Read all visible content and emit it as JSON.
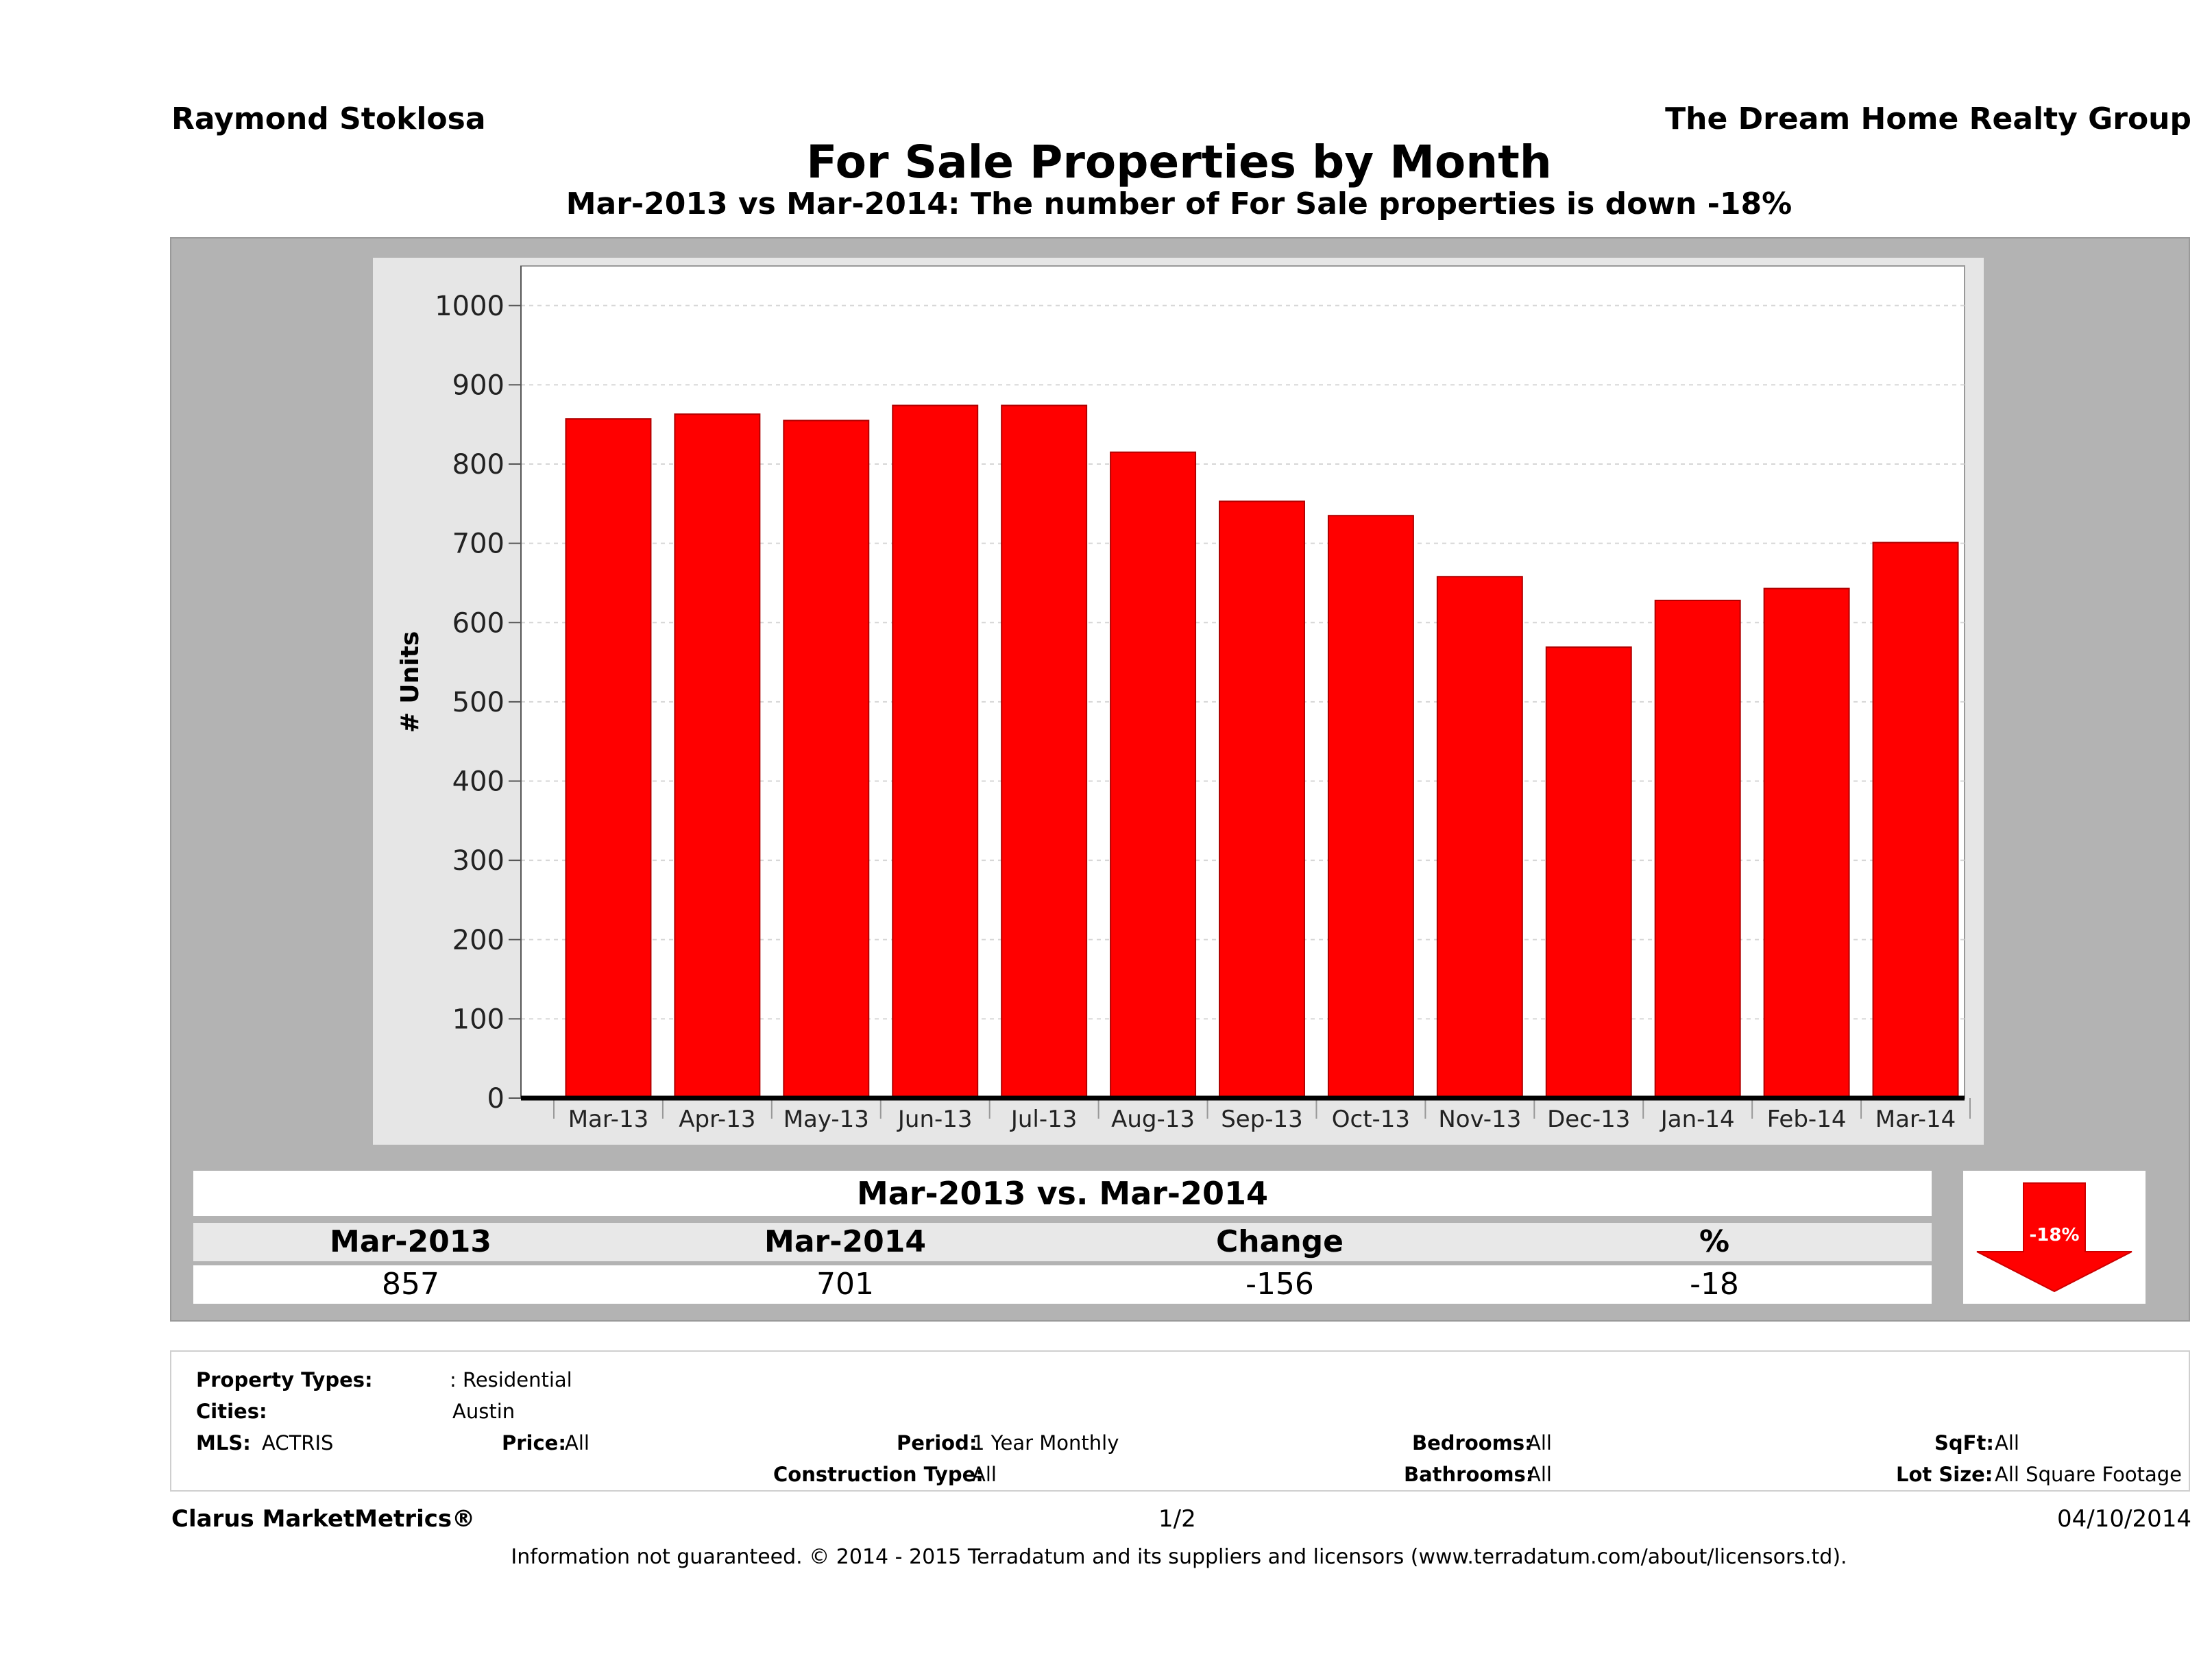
{
  "header": {
    "agent_name": "Raymond Stoklosa",
    "company_name": "The Dream Home Realty Group"
  },
  "colors": {
    "bar": "#ff0000",
    "panel": "#b3b3b3",
    "arrow": "#ff0000"
  },
  "chart_data": {
    "type": "bar",
    "title": "For Sale Properties by Month",
    "subtitle": "Mar-2013 vs Mar-2014: The number of For Sale  properties is down -18%",
    "ylabel": "# Units",
    "xlabel": "",
    "ylim": [
      0,
      1050
    ],
    "yticks": [
      "0",
      "100",
      "200",
      "300",
      "400",
      "500",
      "600",
      "700",
      "800",
      "900",
      "1000"
    ],
    "grid": true,
    "categories": [
      "Mar-13",
      "Apr-13",
      "May-13",
      "Jun-13",
      "Jul-13",
      "Aug-13",
      "Sep-13",
      "Oct-13",
      "Nov-13",
      "Dec-13",
      "Jan-14",
      "Feb-14",
      "Mar-14"
    ],
    "values": [
      857,
      863,
      855,
      874,
      874,
      815,
      753,
      735,
      658,
      569,
      628,
      643,
      701
    ]
  },
  "summary": {
    "title": "Mar-2013 vs. Mar-2014",
    "headers": [
      "Mar-2013",
      "Mar-2014",
      "Change",
      "%"
    ],
    "values": [
      "857",
      "701",
      "-156",
      "-18"
    ],
    "badge": "-18%",
    "arrow_icon": "down-arrow-icon"
  },
  "filters": {
    "property_types_label": "Property Types:",
    "property_types_value": ": Residential",
    "cities_label": "Cities:",
    "cities_value": "Austin",
    "mls_label": "MLS:",
    "mls_value": "ACTRIS",
    "price_label": "Price:",
    "price_value": "All",
    "period_label": "Period:",
    "period_value": "1 Year Monthly",
    "construction_label": "Construction Type:",
    "construction_value": "All",
    "bedrooms_label": "Bedrooms:",
    "bedrooms_value": "All",
    "bathrooms_label": "Bathrooms:",
    "bathrooms_value": "All",
    "sqft_label": "SqFt:",
    "sqft_value": "All",
    "lotsize_label": "Lot Size:",
    "lotsize_value": "All Square Footage"
  },
  "footer": {
    "brand": "Clarus MarketMetrics®",
    "page": "1/2",
    "date": "04/10/2014",
    "disclaimer": "Information not guaranteed. © 2014 - 2015 Terradatum and its suppliers and licensors (www.terradatum.com/about/licensors.td)."
  }
}
